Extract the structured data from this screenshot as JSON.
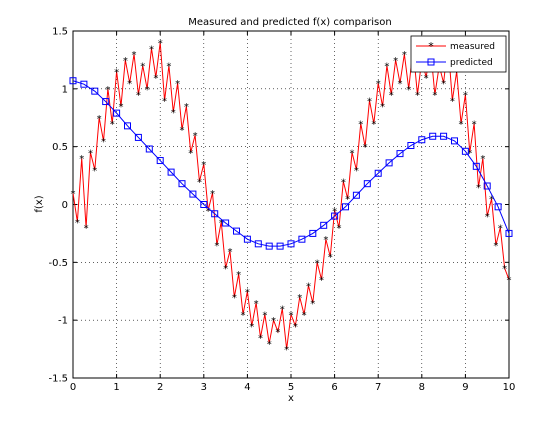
{
  "chart_data": {
    "type": "line",
    "title": "Measured and predicted f(x) comparison",
    "xlabel": "x",
    "ylabel": "f(x)",
    "xlim": [
      0,
      10
    ],
    "ylim": [
      -1.5,
      1.5
    ],
    "xticks": [
      "0",
      "1",
      "2",
      "3",
      "4",
      "5",
      "6",
      "7",
      "8",
      "9",
      "10"
    ],
    "yticks": [
      "-1.5",
      "-1",
      "-0.5",
      "0",
      "0.5",
      "1",
      "1.5"
    ],
    "grid": true,
    "legend_position": "top-right",
    "series": [
      {
        "name": "measured",
        "color": "#ff0000",
        "marker": "star",
        "x": [
          0.0,
          0.1,
          0.2,
          0.3,
          0.4,
          0.5,
          0.6,
          0.7,
          0.8,
          0.9,
          1.0,
          1.1,
          1.2,
          1.3,
          1.4,
          1.5,
          1.6,
          1.7,
          1.8,
          1.9,
          2.0,
          2.1,
          2.2,
          2.3,
          2.4,
          2.5,
          2.6,
          2.7,
          2.8,
          2.9,
          3.0,
          3.1,
          3.2,
          3.3,
          3.4,
          3.5,
          3.6,
          3.7,
          3.8,
          3.9,
          4.0,
          4.1,
          4.2,
          4.3,
          4.4,
          4.5,
          4.6,
          4.7,
          4.8,
          4.9,
          5.0,
          5.1,
          5.2,
          5.3,
          5.4,
          5.5,
          5.6,
          5.7,
          5.8,
          5.9,
          6.0,
          6.1,
          6.2,
          6.3,
          6.4,
          6.5,
          6.6,
          6.7,
          6.8,
          6.9,
          7.0,
          7.1,
          7.2,
          7.3,
          7.4,
          7.5,
          7.6,
          7.7,
          7.8,
          7.9,
          8.0,
          8.1,
          8.2,
          8.3,
          8.4,
          8.5,
          8.6,
          8.7,
          8.8,
          8.9,
          9.0,
          9.1,
          9.2,
          9.3,
          9.4,
          9.5,
          9.6,
          9.7,
          9.8,
          9.9,
          10.0
        ],
        "y": [
          0.1,
          -0.15,
          0.4,
          -0.2,
          0.45,
          0.3,
          0.75,
          0.55,
          1.0,
          0.7,
          1.15,
          0.85,
          1.25,
          1.05,
          1.3,
          0.95,
          1.2,
          1.0,
          1.35,
          1.1,
          1.4,
          0.9,
          1.2,
          0.8,
          1.05,
          0.65,
          0.85,
          0.45,
          0.6,
          0.2,
          0.35,
          -0.05,
          0.1,
          -0.35,
          -0.15,
          -0.55,
          -0.4,
          -0.8,
          -0.6,
          -0.95,
          -0.75,
          -1.05,
          -0.85,
          -1.15,
          -0.95,
          -1.2,
          -1.0,
          -1.1,
          -0.9,
          -1.25,
          -0.95,
          -1.05,
          -0.8,
          -0.95,
          -0.7,
          -0.85,
          -0.5,
          -0.65,
          -0.3,
          -0.45,
          -0.05,
          -0.2,
          0.2,
          0.05,
          0.45,
          0.3,
          0.7,
          0.5,
          0.9,
          0.7,
          1.05,
          0.85,
          1.2,
          0.95,
          1.25,
          1.05,
          1.3,
          1.0,
          1.35,
          0.95,
          1.25,
          1.1,
          1.35,
          0.95,
          1.2,
          1.05,
          1.4,
          0.9,
          1.15,
          0.7,
          0.95,
          0.45,
          0.7,
          0.15,
          0.4,
          -0.1,
          0.05,
          -0.35,
          -0.2,
          -0.55,
          -0.65
        ]
      },
      {
        "name": "predicted",
        "color": "#0000ff",
        "marker": "square",
        "x": [
          0.0,
          0.25,
          0.5,
          0.75,
          1.0,
          1.25,
          1.5,
          1.75,
          2.0,
          2.25,
          2.5,
          2.75,
          3.0,
          3.25,
          3.5,
          3.75,
          4.0,
          4.25,
          4.5,
          4.75,
          5.0,
          5.25,
          5.5,
          5.75,
          6.0,
          6.25,
          6.5,
          6.75,
          7.0,
          7.25,
          7.5,
          7.75,
          8.0,
          8.25,
          8.5,
          8.75,
          9.0,
          9.25,
          9.5,
          9.75,
          10.0
        ],
        "y": [
          1.07,
          1.04,
          0.98,
          0.89,
          0.79,
          0.68,
          0.58,
          0.48,
          0.38,
          0.28,
          0.18,
          0.09,
          0.0,
          -0.08,
          -0.16,
          -0.23,
          -0.3,
          -0.34,
          -0.36,
          -0.36,
          -0.34,
          -0.3,
          -0.25,
          -0.18,
          -0.1,
          -0.02,
          0.08,
          0.18,
          0.27,
          0.36,
          0.44,
          0.51,
          0.56,
          0.59,
          0.59,
          0.55,
          0.46,
          0.33,
          0.16,
          -0.02,
          -0.25
        ]
      }
    ]
  }
}
